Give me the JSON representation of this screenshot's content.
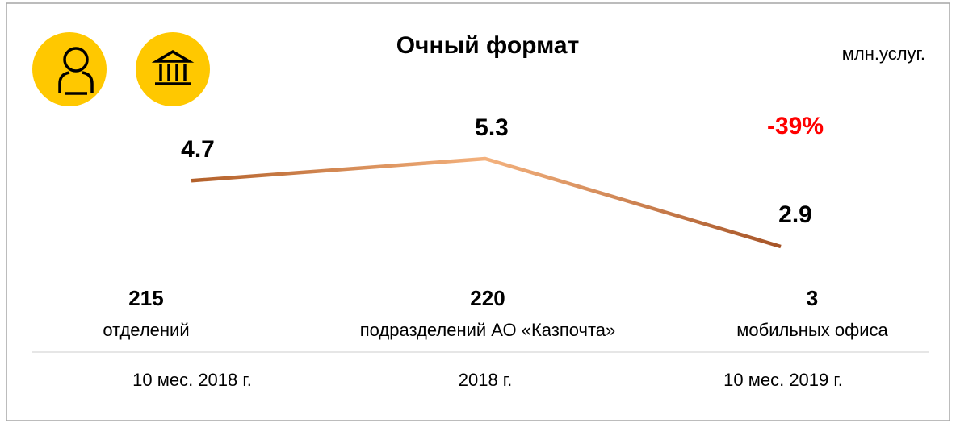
{
  "chart_data": {
    "type": "line",
    "title": "Очный формат",
    "unit": "млн.услуг.",
    "categories": [
      "10 мес. 2018 г.",
      "2018 г.",
      "10 мес. 2019 г."
    ],
    "series": [
      {
        "values": [
          4.7,
          5.3,
          2.9
        ],
        "color": "#c0692c"
      }
    ],
    "annotation": "-39%",
    "counts": [
      {
        "value": 215,
        "label": "отделений"
      },
      {
        "value": 220,
        "label": "подразделений АО «Казпочта»"
      },
      {
        "value": 3,
        "label": "мобильных офиса"
      }
    ]
  }
}
